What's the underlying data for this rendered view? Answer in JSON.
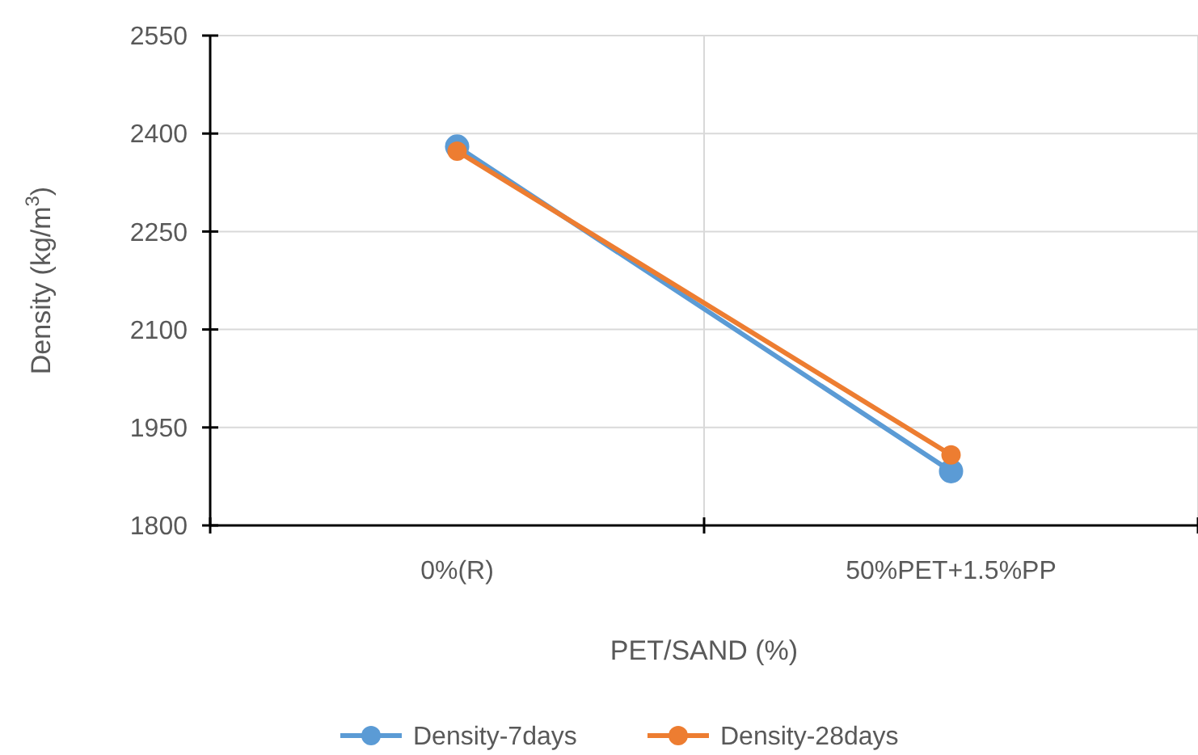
{
  "chart_data": {
    "type": "line",
    "xlabel": "PET/SAND (%)",
    "ylabel": "Density (kg/m$^{3}$)",
    "categories": [
      "0%(R)",
      "50%PET+1.5%PP"
    ],
    "series": [
      {
        "name": "Density-7days",
        "color": "#5b9bd5",
        "values": [
          2380,
          1883
        ]
      },
      {
        "name": "Density-28days",
        "color": "#ed7d31",
        "values": [
          2373,
          1908
        ]
      }
    ],
    "ylim": [
      1800,
      2550
    ],
    "yticks": [
      1800,
      1950,
      2100,
      2250,
      2400,
      2550
    ],
    "grid": true,
    "legend": "bottom",
    "marker": "circle",
    "line_style": "solid"
  }
}
